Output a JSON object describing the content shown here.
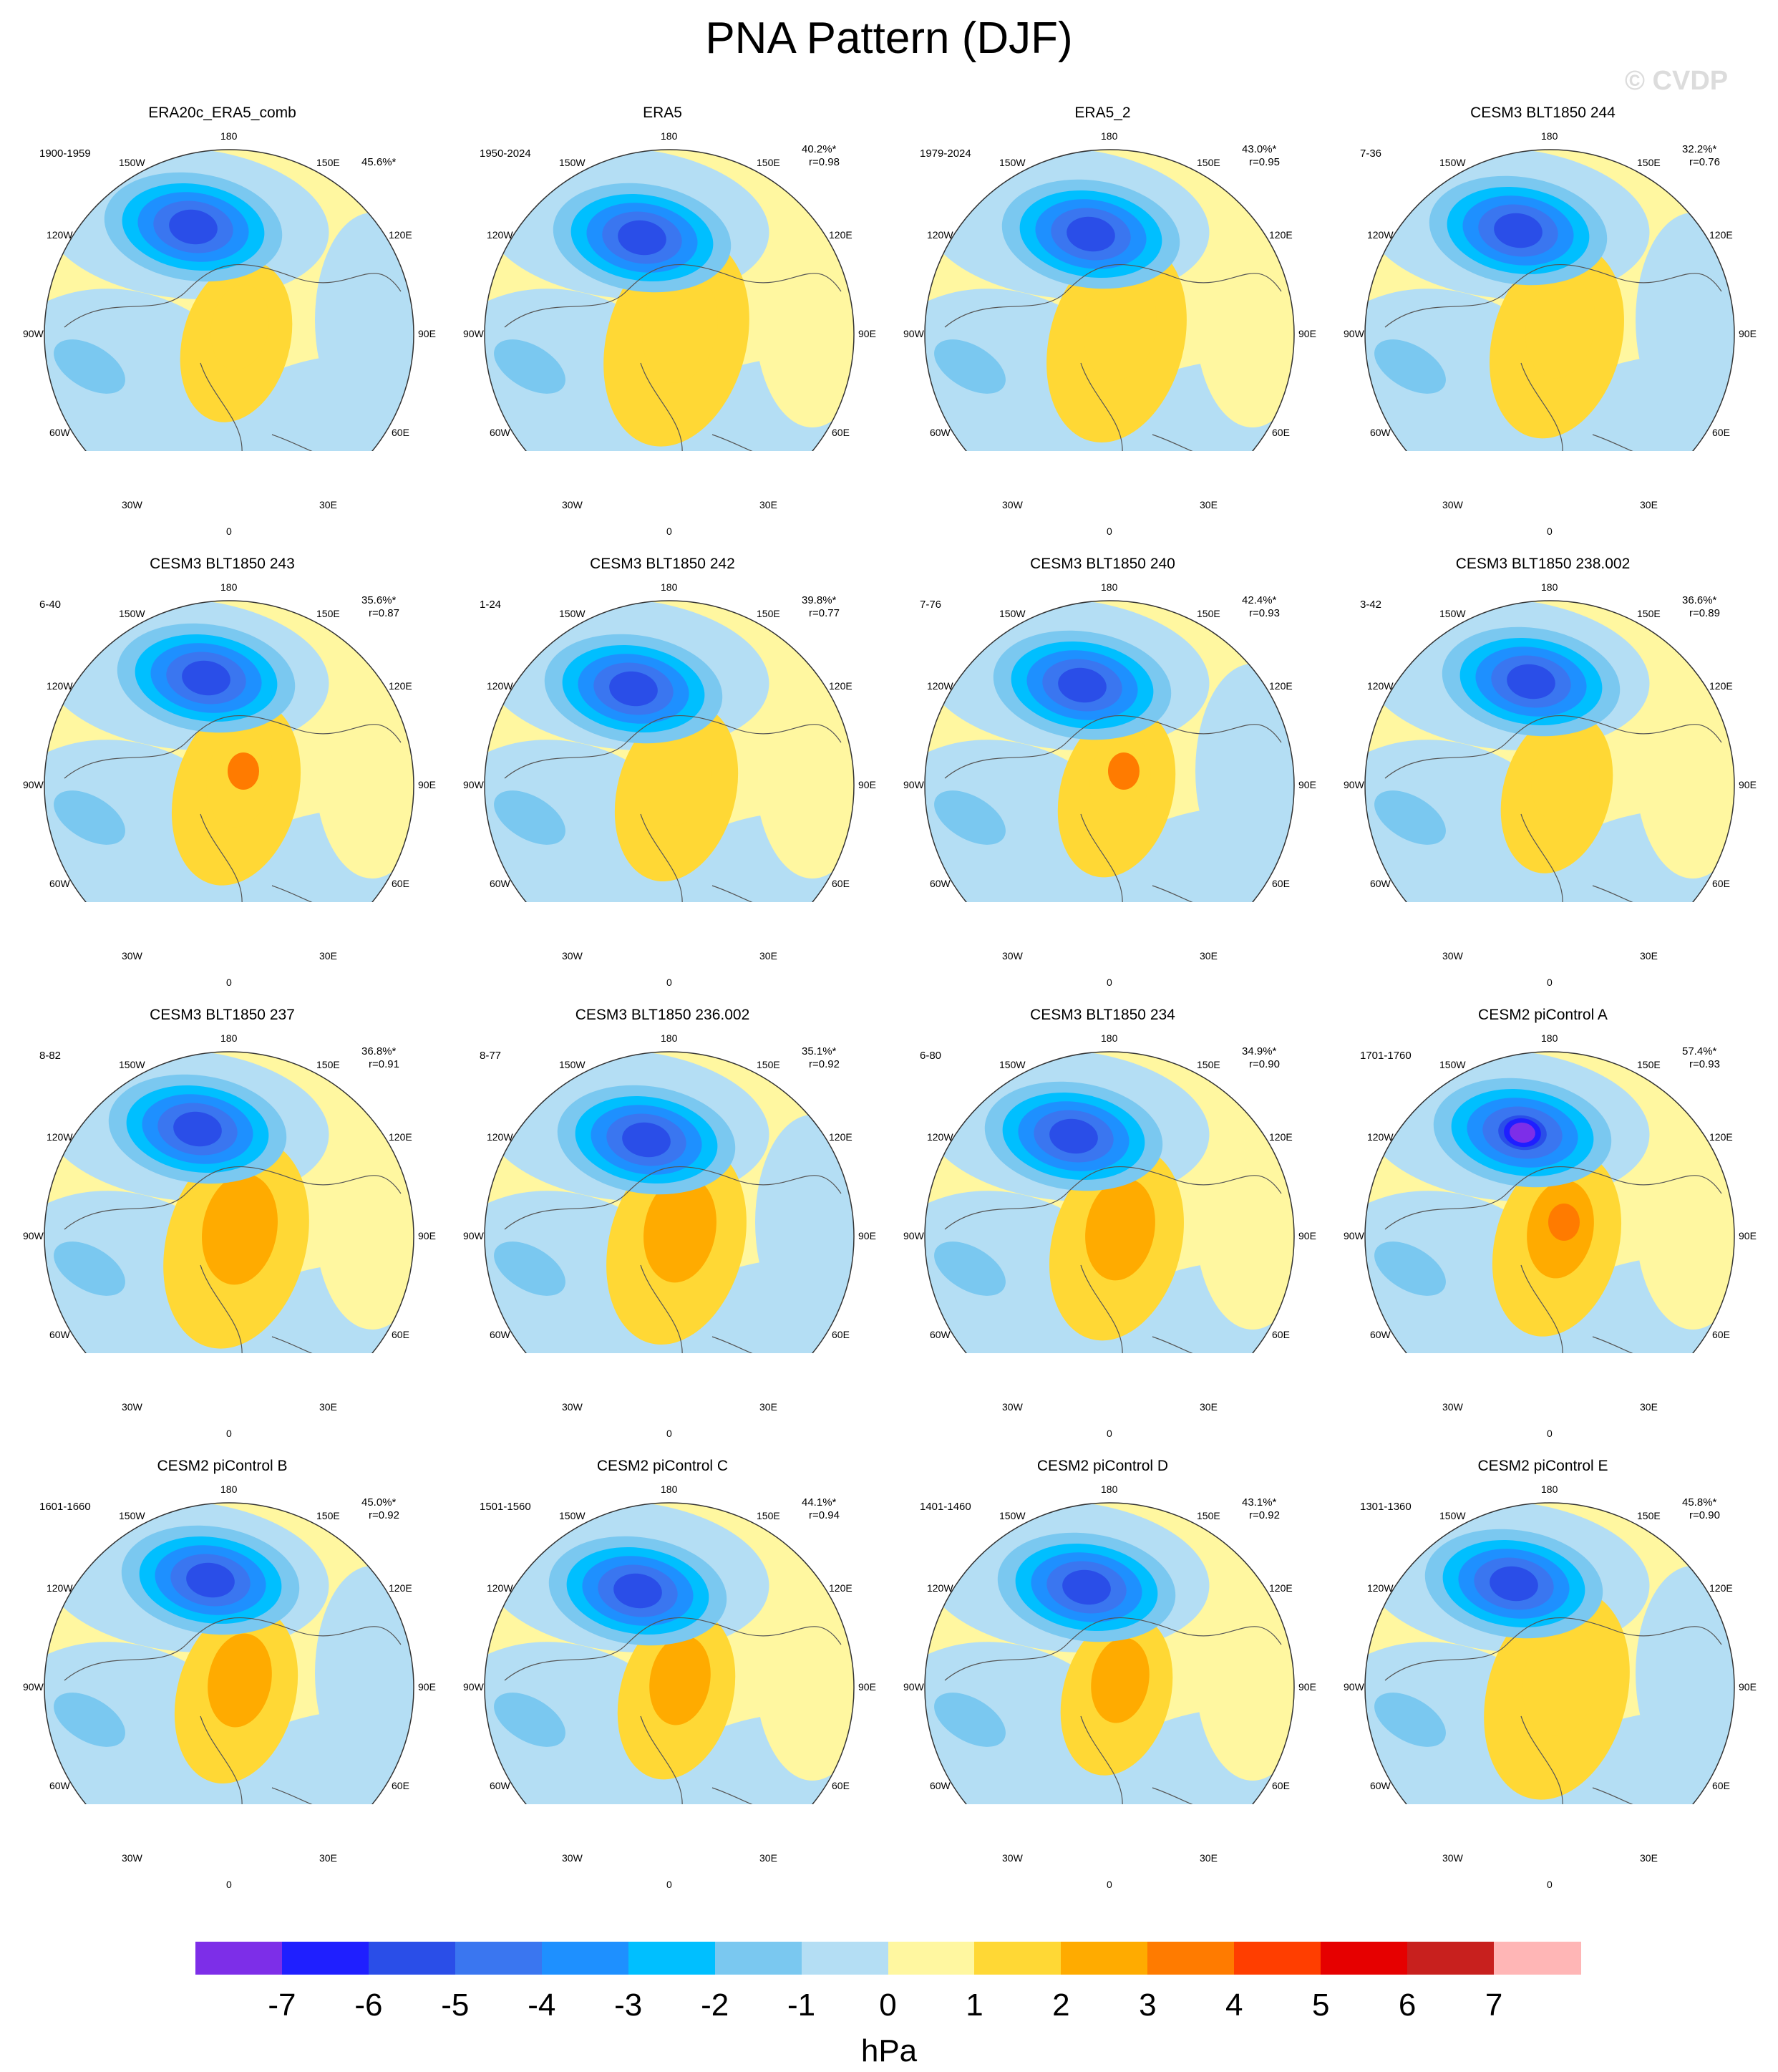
{
  "title": "PNA Pattern (DJF)",
  "watermark": "© CVDP",
  "units": "hPa",
  "lon_labels": [
    "180",
    "150E",
    "120E",
    "90E",
    "60E",
    "30E",
    "0",
    "30W",
    "60W",
    "90W",
    "120W",
    "150W"
  ],
  "colorbar": {
    "colors": [
      "#7d2ee8",
      "#1f1fff",
      "#2a4ee8",
      "#3a76f0",
      "#1e90ff",
      "#00bfff",
      "#7ac8f0",
      "#b4def4",
      "#fff7a0",
      "#ffd835",
      "#ffab00",
      "#ff7b00",
      "#ff3e00",
      "#e60000",
      "#c8201e",
      "#ffb6b6"
    ],
    "labels": [
      "-7",
      "-6",
      "-5",
      "-4",
      "-3",
      "-2",
      "-1",
      "0",
      "1",
      "2",
      "3",
      "4",
      "5",
      "6",
      "7"
    ]
  },
  "panels": [
    {
      "title": "ERA20c_ERA5_comb",
      "years": "1900-1959",
      "pct": "45.6%*",
      "r": ""
    },
    {
      "title": "ERA5",
      "years": "1950-2024",
      "pct": "40.2%*",
      "r": "r=0.98"
    },
    {
      "title": "ERA5_2",
      "years": "1979-2024",
      "pct": "43.0%*",
      "r": "r=0.95"
    },
    {
      "title": "CESM3 BLT1850 244",
      "years": "7-36",
      "pct": "32.2%*",
      "r": "r=0.76"
    },
    {
      "title": "CESM3 BLT1850 243",
      "years": "6-40",
      "pct": "35.6%*",
      "r": "r=0.87"
    },
    {
      "title": "CESM3 BLT1850 242",
      "years": "1-24",
      "pct": "39.8%*",
      "r": "r=0.77"
    },
    {
      "title": "CESM3 BLT1850 240",
      "years": "7-76",
      "pct": "42.4%*",
      "r": "r=0.93"
    },
    {
      "title": "CESM3 BLT1850 238.002",
      "years": "3-42",
      "pct": "36.6%*",
      "r": "r=0.89"
    },
    {
      "title": "CESM3 BLT1850 237",
      "years": "8-82",
      "pct": "36.8%*",
      "r": "r=0.91"
    },
    {
      "title": "CESM3 BLT1850 236.002",
      "years": "8-77",
      "pct": "35.1%*",
      "r": "r=0.92"
    },
    {
      "title": "CESM3 BLT1850 234",
      "years": "6-80",
      "pct": "34.9%*",
      "r": "r=0.90"
    },
    {
      "title": "CESM2 piControl A",
      "years": "1701-1760",
      "pct": "57.4%*",
      "r": "r=0.93"
    },
    {
      "title": "CESM2 piControl B",
      "years": "1601-1660",
      "pct": "45.0%*",
      "r": "r=0.92"
    },
    {
      "title": "CESM2 piControl C",
      "years": "1501-1560",
      "pct": "44.1%*",
      "r": "r=0.94"
    },
    {
      "title": "CESM2 piControl D",
      "years": "1401-1460",
      "pct": "43.1%*",
      "r": "r=0.92"
    },
    {
      "title": "CESM2 piControl E",
      "years": "1301-1360",
      "pct": "45.8%*",
      "r": "r=0.90"
    }
  ]
}
